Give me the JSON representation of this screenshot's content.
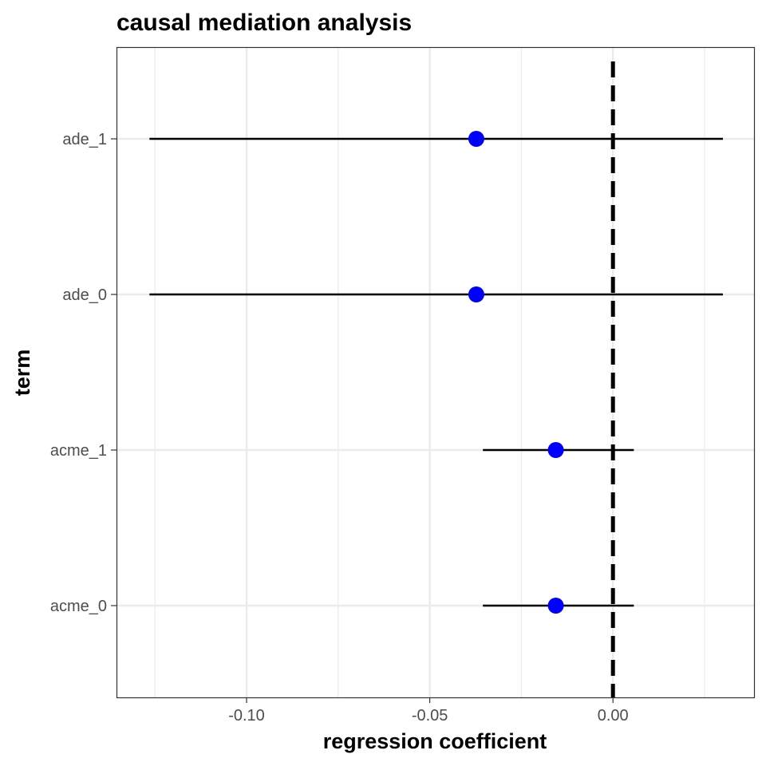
{
  "chart_data": {
    "type": "scatter",
    "title": "causal mediation analysis",
    "xlabel": "regression coefficient",
    "ylabel": "term",
    "xlim": [
      -0.1355,
      0.0385
    ],
    "x_ticks": [
      -0.1,
      -0.05,
      0.0
    ],
    "x_tick_labels": [
      "-0.10",
      "-0.05",
      "0.00"
    ],
    "categories": [
      "acme_0",
      "acme_1",
      "ade_0",
      "ade_1"
    ],
    "points": [
      {
        "term": "acme_0",
        "estimate": -0.0156,
        "conf_low": -0.0355,
        "conf_high": 0.0057
      },
      {
        "term": "acme_1",
        "estimate": -0.0156,
        "conf_low": -0.0355,
        "conf_high": 0.0057
      },
      {
        "term": "ade_0",
        "estimate": -0.0373,
        "conf_low": -0.1265,
        "conf_high": 0.03
      },
      {
        "term": "ade_1",
        "estimate": -0.0373,
        "conf_low": -0.1265,
        "conf_high": 0.03
      }
    ],
    "reference_line": {
      "x": 0.0,
      "style": "dashed"
    },
    "grid": true,
    "legend": "none",
    "colors": {
      "point": "#0000ff",
      "errorbar": "#000000",
      "reference": "#000000",
      "grid": "#ebebeb",
      "panel_border": "#333333"
    }
  }
}
